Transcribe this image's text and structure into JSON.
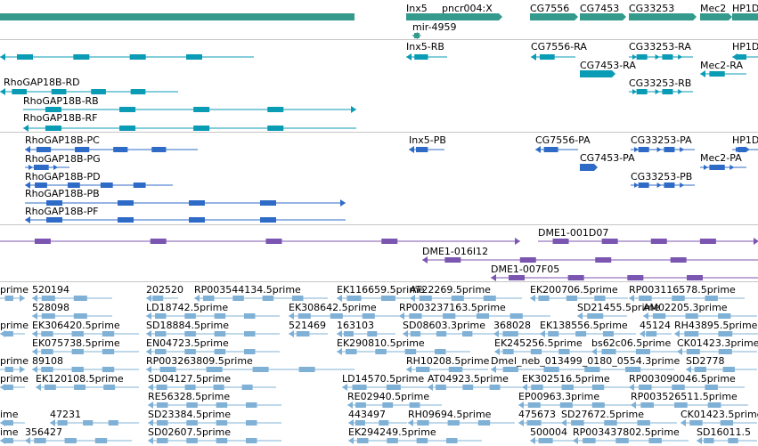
{
  "colors": {
    "gene": "#339a8c",
    "transcript": "#0a9bb5",
    "cds": "#2e6bc6",
    "clone": "#7b56b0",
    "est": "#7fb0d6",
    "separator": "#c6c6c6"
  },
  "tracks": [
    {
      "name": "gene-track",
      "items": [
        {
          "label": "Inx5",
          "color": "gene"
        },
        {
          "label": "pncr004:X",
          "color": "gene"
        },
        {
          "label": "mir-4959",
          "color": "gene"
        },
        {
          "label": "CG7556",
          "color": "gene"
        },
        {
          "label": "CG7453",
          "color": "gene"
        },
        {
          "label": "CG33253",
          "color": "gene"
        },
        {
          "label": "Mec2",
          "color": "gene"
        },
        {
          "label": "HP1D",
          "color": "gene"
        }
      ]
    },
    {
      "name": "transcript-track",
      "items": [
        {
          "label": "",
          "color": "transcript"
        },
        {
          "label": "RhoGAP18B-RD",
          "color": "transcript"
        },
        {
          "label": "RhoGAP18B-RB",
          "color": "transcript"
        },
        {
          "label": "RhoGAP18B-RF",
          "color": "transcript"
        },
        {
          "label": "Inx5-RB",
          "color": "transcript"
        },
        {
          "label": "CG7556-RA",
          "color": "transcript"
        },
        {
          "label": "CG7453-RA",
          "color": "transcript"
        },
        {
          "label": "CG33253-RA",
          "color": "transcript"
        },
        {
          "label": "CG33253-RB",
          "color": "transcript"
        },
        {
          "label": "HP1D",
          "color": "transcript"
        },
        {
          "label": "Mec2-RA",
          "color": "transcript"
        }
      ]
    },
    {
      "name": "cds-track",
      "items": [
        {
          "label": "RhoGAP18B-PC",
          "color": "cds"
        },
        {
          "label": "RhoGAP18B-PG",
          "color": "cds"
        },
        {
          "label": "RhoGAP18B-PD",
          "color": "cds"
        },
        {
          "label": "RhoGAP18B-PB",
          "color": "cds"
        },
        {
          "label": "RhoGAP18B-PF",
          "color": "cds"
        },
        {
          "label": "Inx5-PB",
          "color": "cds"
        },
        {
          "label": "CG7556-PA",
          "color": "cds"
        },
        {
          "label": "CG7453-PA",
          "color": "cds"
        },
        {
          "label": "CG33253-PA",
          "color": "cds"
        },
        {
          "label": "CG33253-PB",
          "color": "cds"
        },
        {
          "label": "HP1D",
          "color": "cds"
        },
        {
          "label": "Mec2-PA",
          "color": "cds"
        }
      ]
    },
    {
      "name": "clone-track",
      "items": [
        {
          "label": "",
          "color": "clone"
        },
        {
          "label": "DME1-001D07",
          "color": "clone"
        },
        {
          "label": "DME1-016I12",
          "color": "clone"
        },
        {
          "label": "DME1-007F05",
          "color": "clone"
        }
      ]
    },
    {
      "name": "est-track",
      "items": [
        {
          "label": "prime",
          "color": "est"
        },
        {
          "label": "520194",
          "color": "est"
        },
        {
          "label": "202520",
          "color": "est"
        },
        {
          "label": "RP003544134.5prime",
          "color": "est"
        },
        {
          "label": "EK116659.5prime",
          "color": "est"
        },
        {
          "label": "AT22269.5prime",
          "color": "est"
        },
        {
          "label": "EK200706.5prime",
          "color": "est"
        },
        {
          "label": "RP003116578.5prime",
          "color": "est"
        },
        {
          "label": "528098",
          "color": "est"
        },
        {
          "label": "LD18742.5prime",
          "color": "est"
        },
        {
          "label": "EK308642.5prime",
          "color": "est"
        },
        {
          "label": "RP003237163.5prime",
          "color": "est"
        },
        {
          "label": "SD21455.5prime",
          "color": "est"
        },
        {
          "label": "AM02205.3prime",
          "color": "est"
        },
        {
          "label": "prime",
          "color": "est"
        },
        {
          "label": "EK306420.5prime",
          "color": "est"
        },
        {
          "label": "SD18884.5prime",
          "color": "est"
        },
        {
          "label": "521469",
          "color": "est"
        },
        {
          "label": "163103",
          "color": "est"
        },
        {
          "label": "SD08603.3prime",
          "color": "est"
        },
        {
          "label": "368028",
          "color": "est"
        },
        {
          "label": "EK138556.5prime",
          "color": "est"
        },
        {
          "label": "45124",
          "color": "est"
        },
        {
          "label": "RH43895.5prime",
          "color": "est"
        },
        {
          "label": "EK075738.5prime",
          "color": "est"
        },
        {
          "label": "EN04723.5prime",
          "color": "est"
        },
        {
          "label": "EK290810.5prime",
          "color": "est"
        },
        {
          "label": "EK245256.5prime",
          "color": "est"
        },
        {
          "label": "bs62c06.5prime",
          "color": "est"
        },
        {
          "label": "CK01423.3prime",
          "color": "est"
        },
        {
          "label": "prime",
          "color": "est"
        },
        {
          "label": "89108",
          "color": "est"
        },
        {
          "label": "RP003263809.5prime",
          "color": "est"
        },
        {
          "label": "RH10208.5prime",
          "color": "est"
        },
        {
          "label": "Dmel_neb_013499_0180_0554.3prime",
          "color": "est"
        },
        {
          "label": "SD2778",
          "color": "est"
        },
        {
          "label": "prime",
          "color": "est"
        },
        {
          "label": "EK120108.5prime",
          "color": "est"
        },
        {
          "label": "SD04127.5prime",
          "color": "est"
        },
        {
          "label": "LD14570.5prime",
          "color": "est"
        },
        {
          "label": "AT04923.5prime",
          "color": "est"
        },
        {
          "label": "EK302516.5prime",
          "color": "est"
        },
        {
          "label": "RP003090046.5prime",
          "color": "est"
        },
        {
          "label": "RE56328.5prime",
          "color": "est"
        },
        {
          "label": "RE02940.5prime",
          "color": "est"
        },
        {
          "label": "EP00963.3prime",
          "color": "est"
        },
        {
          "label": "RP003526511.5prime",
          "color": "est"
        },
        {
          "label": "ime",
          "color": "est"
        },
        {
          "label": "47231",
          "color": "est"
        },
        {
          "label": "SD23384.5prime",
          "color": "est"
        },
        {
          "label": "443497",
          "color": "est"
        },
        {
          "label": "RH09694.5prime",
          "color": "est"
        },
        {
          "label": "475673",
          "color": "est"
        },
        {
          "label": "SD27672.5prime",
          "color": "est"
        },
        {
          "label": "CK01423.5prime",
          "color": "est"
        },
        {
          "label": "ime",
          "color": "est"
        },
        {
          "label": "356427",
          "color": "est"
        },
        {
          "label": "SD02607.5prime",
          "color": "est"
        },
        {
          "label": "EK294249.5prime",
          "color": "est"
        },
        {
          "label": "500004",
          "color": "est"
        },
        {
          "label": "RP003437802.5prime",
          "color": "est"
        },
        {
          "label": "SD16011.5",
          "color": "est"
        }
      ]
    }
  ]
}
